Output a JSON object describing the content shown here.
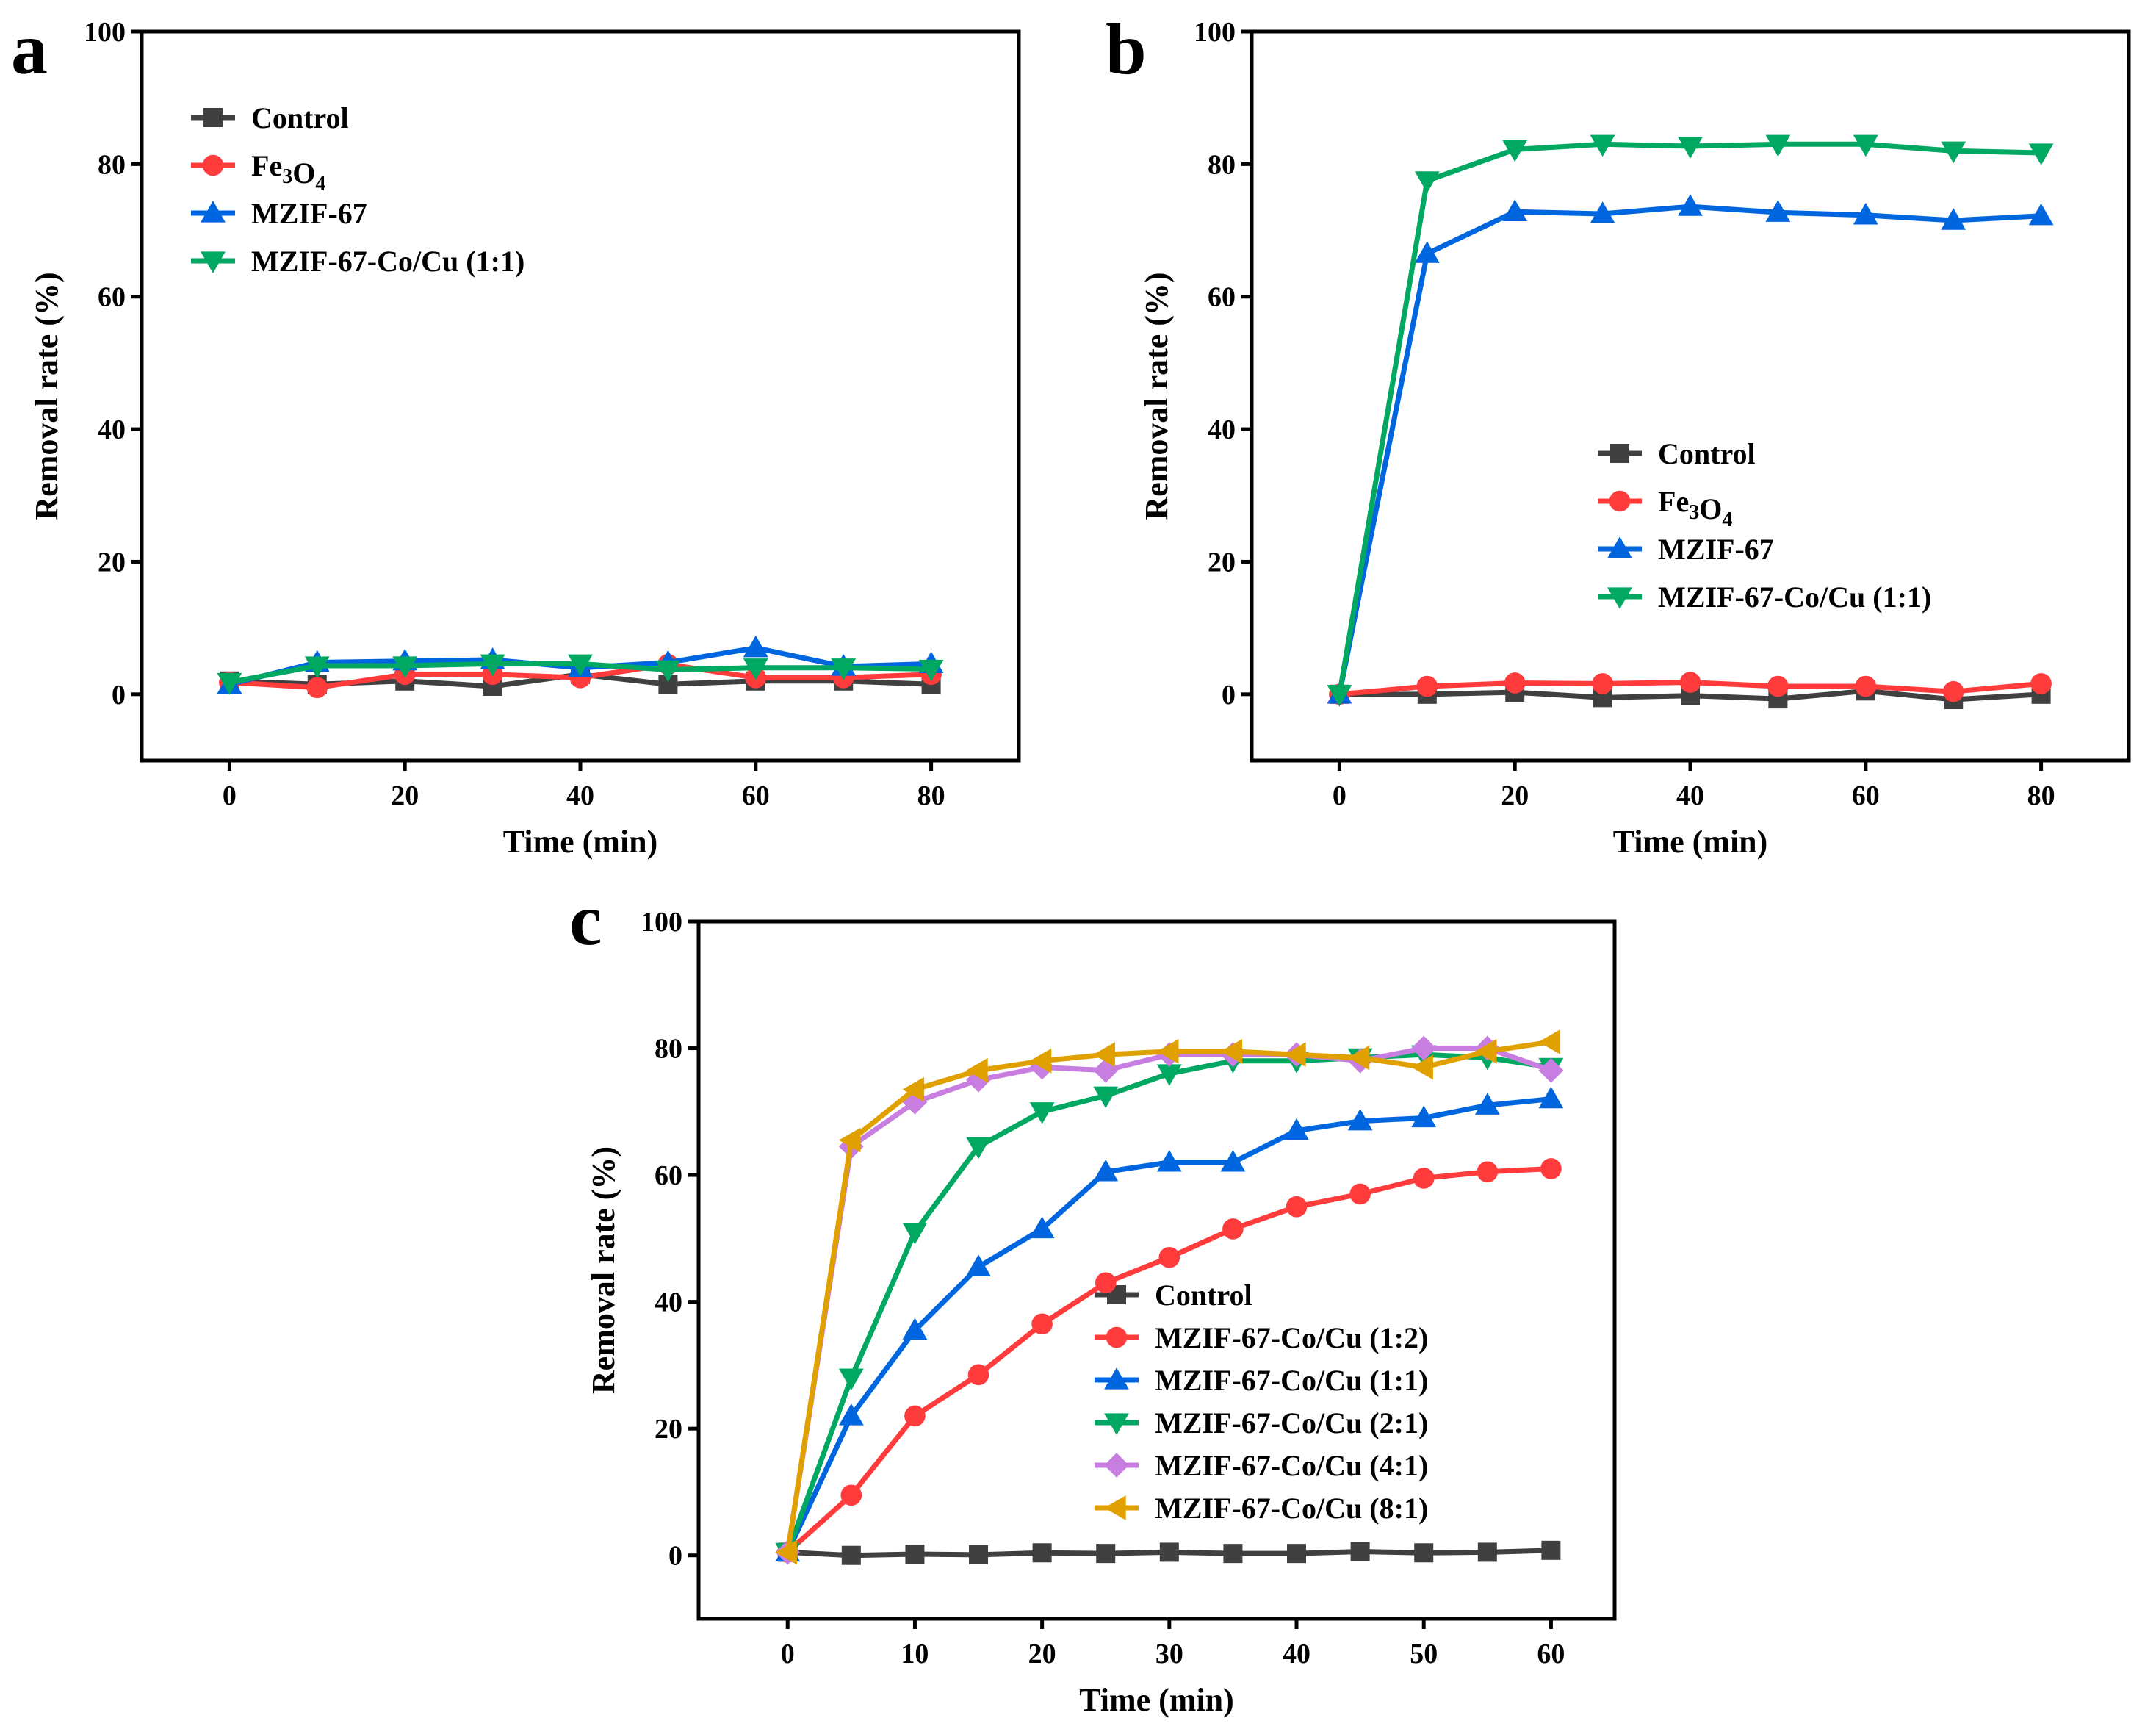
{
  "chart_data": [
    {
      "panel": "a",
      "type": "line",
      "xlabel": "Time (min)",
      "ylabel": "Removal rate (%)",
      "xlim": [
        -10,
        90
      ],
      "ylim": [
        -10,
        100
      ],
      "xticks": [
        0,
        20,
        40,
        60,
        80
      ],
      "yticks": [
        0,
        20,
        40,
        60,
        80,
        100
      ],
      "grid": false,
      "legend_position": "top-left",
      "x": [
        0,
        10,
        20,
        30,
        40,
        50,
        60,
        70,
        80
      ],
      "series": [
        {
          "name": "Control",
          "marker": "square",
          "color": "#404040",
          "values": [
            2,
            1.5,
            2,
            1.2,
            3,
            1.5,
            2,
            2,
            1.5
          ]
        },
        {
          "name": "Fe3O4",
          "marker": "circle",
          "color": "#ff3b3b",
          "values": [
            1.8,
            1,
            3,
            3,
            2.5,
            4.5,
            2.5,
            2.5,
            3
          ]
        },
        {
          "name": "MZIF-67",
          "marker": "triangle-up",
          "color": "#0066e0",
          "values": [
            1.5,
            4.8,
            5,
            5.2,
            4,
            4.8,
            7,
            4.2,
            4.6
          ]
        },
        {
          "name": "MZIF-67-Co/Cu (1:1)",
          "marker": "triangle-down",
          "color": "#00a862",
          "values": [
            1.8,
            4.3,
            4.3,
            4.6,
            4.6,
            3.7,
            4,
            4,
            3.8
          ]
        }
      ]
    },
    {
      "panel": "b",
      "type": "line",
      "xlabel": "Time (min)",
      "ylabel": "Removal rate (%)",
      "xlim": [
        -10,
        90
      ],
      "ylim": [
        -10,
        100
      ],
      "xticks": [
        0,
        20,
        40,
        60,
        80
      ],
      "yticks": [
        0,
        20,
        40,
        60,
        80,
        100
      ],
      "grid": false,
      "legend_position": "center-right",
      "x": [
        0,
        10,
        20,
        30,
        40,
        50,
        60,
        70,
        80
      ],
      "series": [
        {
          "name": "Control",
          "marker": "square",
          "color": "#404040",
          "values": [
            0,
            0,
            0.3,
            -0.5,
            -0.2,
            -0.7,
            0.5,
            -0.8,
            0
          ]
        },
        {
          "name": "Fe3O4",
          "marker": "circle",
          "color": "#ff3b3b",
          "values": [
            0,
            1.2,
            1.7,
            1.6,
            1.8,
            1.2,
            1.2,
            0.4,
            1.6
          ]
        },
        {
          "name": "MZIF-67",
          "marker": "triangle-up",
          "color": "#0066e0",
          "values": [
            0,
            66.5,
            72.8,
            72.5,
            73.6,
            72.7,
            72.3,
            71.5,
            72.2
          ]
        },
        {
          "name": "MZIF-67-Co/Cu (1:1)",
          "marker": "triangle-down",
          "color": "#00a862",
          "values": [
            0,
            77.5,
            82.2,
            83,
            82.7,
            83,
            83,
            82,
            81.7
          ]
        }
      ]
    },
    {
      "panel": "c",
      "type": "line",
      "xlabel": "Time (min)",
      "ylabel": "Removal rate (%)",
      "xlim": [
        -7,
        65
      ],
      "ylim": [
        -10,
        100
      ],
      "xticks": [
        0,
        10,
        20,
        30,
        40,
        50,
        60
      ],
      "yticks": [
        0,
        20,
        40,
        60,
        80,
        100
      ],
      "grid": false,
      "legend_position": "bottom-right",
      "x": [
        0,
        5,
        10,
        15,
        20,
        25,
        30,
        35,
        40,
        45,
        50,
        55,
        60
      ],
      "series": [
        {
          "name": "Control",
          "marker": "square",
          "color": "#404040",
          "values": [
            0.5,
            0,
            0.2,
            0.1,
            0.4,
            0.3,
            0.5,
            0.3,
            0.3,
            0.6,
            0.4,
            0.5,
            0.8
          ]
        },
        {
          "name": "MZIF-67-Co/Cu (1:2)",
          "marker": "circle",
          "color": "#ff3b3b",
          "values": [
            0.5,
            9.5,
            22,
            28.5,
            36.5,
            43,
            47,
            51.5,
            55,
            57,
            59.5,
            60.5,
            61
          ]
        },
        {
          "name": "MZIF-67-Co/Cu (1:1)",
          "marker": "triangle-up",
          "color": "#0066e0",
          "values": [
            0.5,
            22,
            35.5,
            45.5,
            51.5,
            60.5,
            62,
            62,
            67,
            68.5,
            69,
            71,
            72
          ]
        },
        {
          "name": "MZIF-67-Co/Cu (2:1)",
          "marker": "triangle-down",
          "color": "#00a862",
          "values": [
            0.5,
            28,
            51,
            64.5,
            70,
            72.5,
            76,
            78,
            78,
            78.5,
            79,
            78.5,
            77
          ]
        },
        {
          "name": "MZIF-67-Co/Cu (4:1)",
          "marker": "diamond",
          "color": "#c87de0",
          "values": [
            0.5,
            64.5,
            71.5,
            75,
            77,
            76.5,
            79,
            79,
            79,
            78,
            80,
            80,
            76.5
          ]
        },
        {
          "name": "MZIF-67-Co/Cu (8:1)",
          "marker": "triangle-left",
          "color": "#e0a000",
          "values": [
            0.5,
            65.5,
            73.5,
            76.5,
            78,
            79,
            79.5,
            79.5,
            79,
            78.5,
            77,
            79.5,
            81
          ]
        }
      ]
    }
  ]
}
